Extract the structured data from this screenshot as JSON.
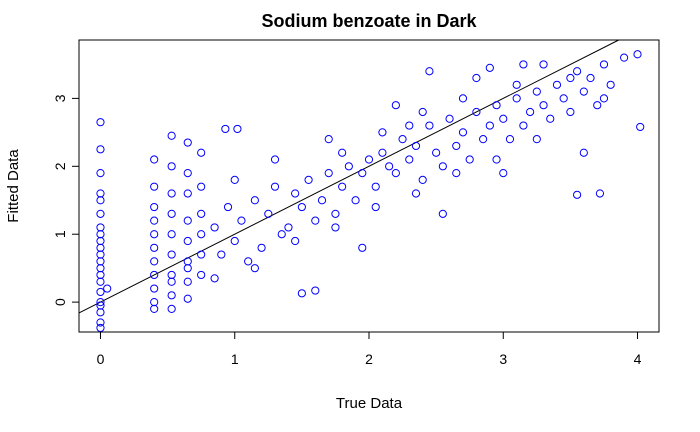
{
  "chart_data": {
    "type": "scatter",
    "title": "Sodium benzoate in Dark",
    "xlabel": "True Data",
    "ylabel": "Fitted Data",
    "xlim": [
      -0.16,
      4.16
    ],
    "ylim": [
      -0.44,
      3.86
    ],
    "x_ticks": [
      0,
      1,
      2,
      3,
      4
    ],
    "y_ticks": [
      0,
      1,
      2,
      3
    ],
    "point_color": "#0000ff",
    "marker": "open-circle",
    "grid": false,
    "legend": "none",
    "reference_line": {
      "intercept": 0,
      "slope": 1,
      "color": "#000000"
    },
    "series": [
      {
        "x": [
          0,
          0,
          0,
          0,
          0,
          0,
          0,
          0,
          0,
          0,
          0,
          0,
          0,
          0,
          0,
          0,
          0,
          0,
          0,
          0,
          0.4,
          0.4,
          0.4,
          0.4,
          0.4,
          0.4,
          0.4,
          0.4,
          0.4,
          0.4,
          0.53,
          0.53,
          0.53,
          0.53,
          0.53,
          0.53,
          0.53,
          0.53,
          0.53,
          0.65,
          0.65,
          0.65,
          0.65,
          0.65,
          0.65,
          0.65,
          0.65,
          0.75,
          0.75,
          0.75,
          0.75,
          0.75,
          0.75,
          0.85,
          0.9,
          0.95,
          1.0,
          1.02,
          1.05,
          1.1,
          1.15,
          1.2,
          1.25,
          1.3,
          1.35,
          1.4,
          1.45,
          1.5,
          1.55,
          1.6,
          1.65,
          1.7,
          1.75,
          1.8,
          1.85,
          1.9,
          1.95,
          2.0,
          2.05,
          2.1,
          2.15,
          2.2,
          2.25,
          2.3,
          2.35,
          2.4,
          2.45,
          2.5,
          2.55,
          2.6,
          2.65,
          2.7,
          2.75,
          2.8,
          2.85,
          2.9,
          2.95,
          3.0,
          3.05,
          3.1,
          3.15,
          3.2,
          3.25,
          3.3,
          3.35,
          3.4,
          3.45,
          3.5,
          3.55,
          3.6,
          3.65,
          3.7,
          3.75,
          3.8,
          3.9,
          4.0,
          4.02,
          3.55,
          3.72,
          0.93,
          1.5,
          1.6,
          0.85,
          1.15,
          1.45,
          1.75,
          2.05,
          2.35,
          2.65,
          2.95,
          3.25,
          3.1,
          2.7,
          2.4,
          2.1,
          1.8,
          1.3,
          1.0,
          1.7,
          2.2,
          2.8,
          3.3,
          3.5,
          0.05,
          0.0,
          0.4,
          0.53,
          0.65,
          2.45,
          2.9,
          3.15,
          1.95,
          2.55,
          3.6,
          3.75,
          3.0,
          2.3
        ],
        "y": [
          2.65,
          2.25,
          1.9,
          1.6,
          1.3,
          1.1,
          0.9,
          0.7,
          0.5,
          0.3,
          0.15,
          0.0,
          -0.15,
          -0.3,
          -0.38,
          0.8,
          1.0,
          0.4,
          1.5,
          0.6,
          2.1,
          1.7,
          1.4,
          1.2,
          1.0,
          0.8,
          0.6,
          0.4,
          0.2,
          -0.1,
          2.45,
          2.0,
          1.6,
          1.3,
          1.0,
          0.7,
          0.4,
          0.1,
          -0.1,
          2.35,
          1.9,
          1.6,
          1.2,
          0.9,
          0.6,
          0.3,
          0.05,
          2.2,
          1.7,
          1.3,
          1.0,
          0.7,
          0.4,
          1.1,
          0.7,
          1.4,
          0.9,
          2.55,
          1.2,
          0.6,
          1.5,
          0.8,
          1.3,
          1.7,
          1.0,
          1.1,
          1.6,
          1.4,
          1.8,
          1.2,
          1.5,
          1.9,
          1.3,
          1.7,
          2.0,
          1.5,
          1.9,
          2.1,
          1.7,
          2.2,
          2.0,
          1.9,
          2.4,
          2.1,
          2.3,
          1.8,
          2.6,
          2.2,
          2.0,
          2.7,
          2.3,
          2.5,
          2.1,
          2.8,
          2.4,
          2.6,
          2.9,
          2.7,
          2.4,
          3.0,
          2.6,
          2.8,
          3.1,
          2.9,
          2.7,
          3.2,
          3.0,
          2.8,
          3.4,
          3.1,
          3.3,
          2.9,
          3.5,
          3.2,
          3.6,
          3.65,
          2.58,
          1.58,
          1.6,
          2.55,
          0.13,
          0.17,
          0.35,
          0.5,
          0.9,
          1.1,
          1.4,
          1.6,
          1.9,
          2.1,
          2.4,
          3.2,
          3.0,
          2.8,
          2.5,
          2.2,
          2.1,
          1.8,
          2.4,
          2.9,
          3.3,
          3.5,
          3.3,
          0.2,
          -0.05,
          0.0,
          0.3,
          0.5,
          3.4,
          3.45,
          3.5,
          0.8,
          1.3,
          2.2,
          3.0,
          1.9,
          2.6
        ]
      }
    ]
  }
}
